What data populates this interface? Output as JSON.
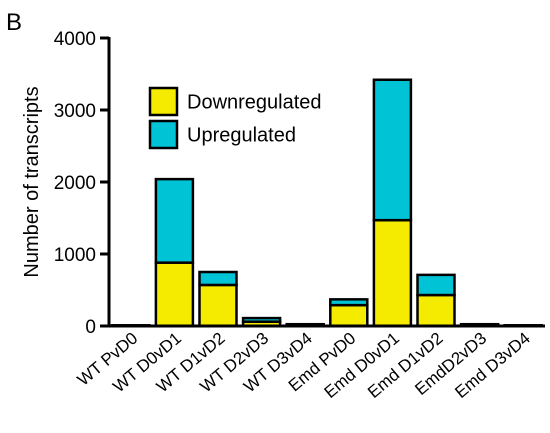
{
  "panel_label": "B",
  "chart_data": {
    "type": "bar",
    "stacked": true,
    "ylabel": "Number of transcripts",
    "ylim": [
      0,
      4000
    ],
    "yticks": [
      0,
      1000,
      2000,
      3000,
      4000
    ],
    "categories": [
      "WT PvD0",
      "WT D0vD1",
      "WT D1vD2",
      "WT D2vD3",
      "WT D3vD4",
      "Emd PvD0",
      "Emd D0vD1",
      "Emd D1vD2",
      "EmdD2vD3",
      "Emd D3vD4"
    ],
    "series": [
      {
        "name": "Downregulated",
        "color": "#f5eb00",
        "values": [
          5,
          880,
          570,
          60,
          10,
          290,
          1470,
          430,
          15,
          5
        ]
      },
      {
        "name": "Upregulated",
        "color": "#00c3d6",
        "values": [
          5,
          1160,
          180,
          50,
          15,
          80,
          1950,
          280,
          10,
          5
        ]
      }
    ],
    "legend_position": "top-left-inside"
  }
}
